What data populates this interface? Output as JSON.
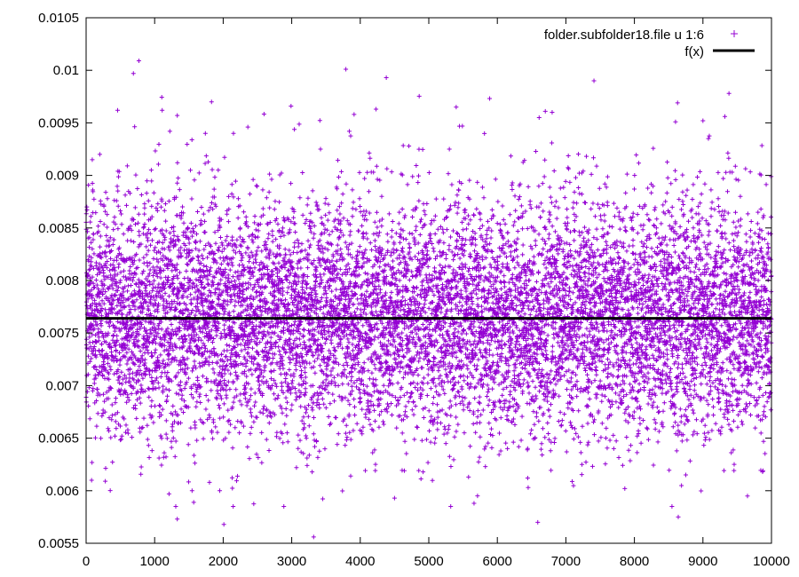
{
  "chart_data": {
    "type": "scatter",
    "title": "",
    "xlabel": "",
    "ylabel": "",
    "xlim": [
      0,
      10000
    ],
    "ylim": [
      0.0055,
      0.0105
    ],
    "xticks": [
      0,
      1000,
      2000,
      3000,
      4000,
      5000,
      6000,
      7000,
      8000,
      9000,
      10000
    ],
    "xtick_labels": [
      "0",
      "1000",
      "2000",
      "3000",
      "4000",
      "5000",
      "6000",
      "7000",
      "8000",
      "9000",
      "10000"
    ],
    "yticks": [
      0.0055,
      0.006,
      0.0065,
      0.007,
      0.0075,
      0.008,
      0.0085,
      0.009,
      0.0095,
      0.01,
      0.0105
    ],
    "ytick_labels": [
      "0.0055",
      "0.006",
      "0.0065",
      "0.007",
      "0.0075",
      "0.008",
      "0.0085",
      "0.009",
      "0.0095",
      "0.01",
      "0.0105"
    ],
    "grid": false,
    "legend_position": "top-right",
    "series": [
      {
        "name": "folder.subfolder18.file u 1:6",
        "kind": "points",
        "marker": "plus",
        "color": "#9400d3",
        "n_points": 10000,
        "x_range": [
          0,
          9999
        ],
        "center": 0.00765,
        "spread_sd": 0.00055,
        "sample_points": [
          [
            770,
            0.01009
          ],
          [
            3790,
            0.01001
          ],
          [
            690,
            0.00997
          ],
          [
            4380,
            0.00993
          ],
          [
            7410,
            0.0099
          ],
          [
            9380,
            0.00978
          ],
          [
            8630,
            0.00969
          ],
          [
            1830,
            0.0097
          ],
          [
            2990,
            0.00966
          ],
          [
            5400,
            0.00965
          ],
          [
            460,
            0.00962
          ],
          [
            1110,
            0.00962
          ],
          [
            6700,
            0.00961
          ],
          [
            6800,
            0.0096
          ],
          [
            4230,
            0.00963
          ],
          [
            3910,
            0.00958
          ],
          [
            1330,
            0.00957
          ],
          [
            6610,
            0.00955
          ],
          [
            9320,
            0.00956
          ],
          [
            8600,
            0.00951
          ],
          [
            2360,
            0.00946
          ],
          [
            5490,
            0.00947
          ],
          [
            9000,
            0.00952
          ],
          [
            2150,
            0.0094
          ],
          [
            1740,
            0.0094
          ],
          [
            9080,
            0.00935
          ],
          [
            3420,
            0.00925
          ],
          [
            5300,
            0.00925
          ],
          [
            200,
            0.0092
          ],
          [
            90,
            0.00915
          ],
          [
            4710,
            0.00928
          ],
          [
            3840,
            0.00942
          ],
          [
            1330,
            0.00573
          ],
          [
            2010,
            0.00568
          ],
          [
            3320,
            0.00556
          ],
          [
            6590,
            0.0057
          ],
          [
            8640,
            0.00575
          ],
          [
            5660,
            0.00588
          ],
          [
            1570,
            0.00589
          ],
          [
            1210,
            0.00597
          ],
          [
            9650,
            0.00595
          ],
          [
            4500,
            0.00593
          ],
          [
            1950,
            0.006
          ],
          [
            6450,
            0.00603
          ],
          [
            7860,
            0.00602
          ],
          [
            80,
            0.0061
          ],
          [
            280,
            0.00609
          ],
          [
            9870,
            0.00618
          ],
          [
            8750,
            0.00615
          ],
          [
            5580,
            0.00613
          ],
          [
            3860,
            0.00614
          ],
          [
            1800,
            0.00608
          ]
        ]
      },
      {
        "name": "f(x)",
        "kind": "line",
        "color": "#000000",
        "x": [
          0,
          10000
        ],
        "y": [
          0.00764,
          0.00764
        ]
      }
    ]
  }
}
